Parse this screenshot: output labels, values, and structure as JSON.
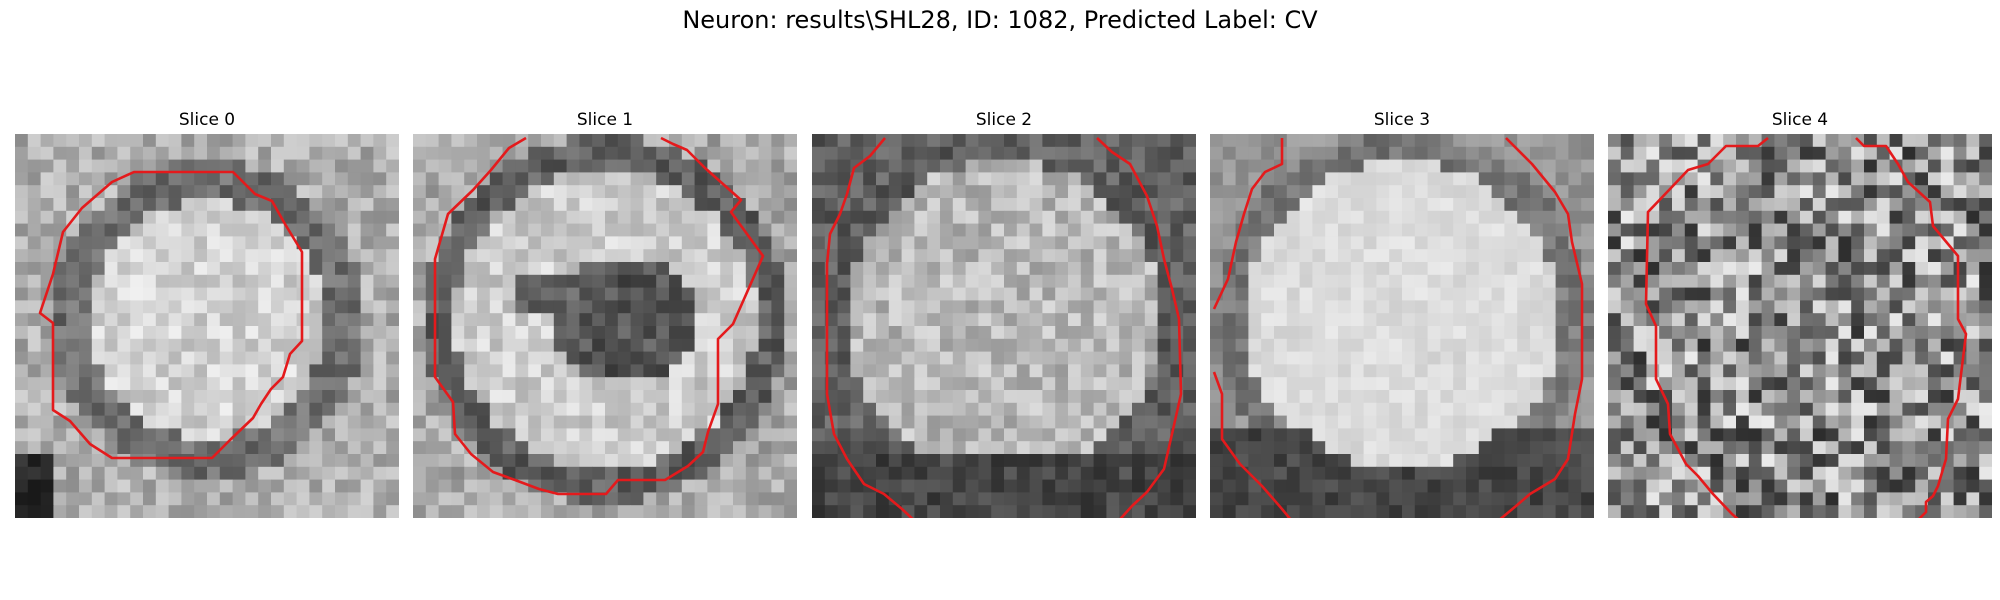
{
  "figure": {
    "title": "Neuron: results\\SHL28, ID: 1082, Predicted Label: CV",
    "contour_color": "#e41a1c",
    "colormap": "grayscale",
    "grid_resolution": 30,
    "slices": [
      {
        "label": "Slice 0",
        "pattern": "bright-disk-dark-ring",
        "contour": "closed-octagon"
      },
      {
        "label": "Slice 1",
        "pattern": "bright-disk-dark-ring-dark-center",
        "contour": "closed-octagon"
      },
      {
        "label": "Slice 2",
        "pattern": "textured-disk-dark-rim",
        "contour": "open-arcs"
      },
      {
        "label": "Slice 3",
        "pattern": "bright-smooth-disk",
        "contour": "open-arcs"
      },
      {
        "label": "Slice 4",
        "pattern": "noise",
        "contour": "open-arcs"
      }
    ]
  }
}
